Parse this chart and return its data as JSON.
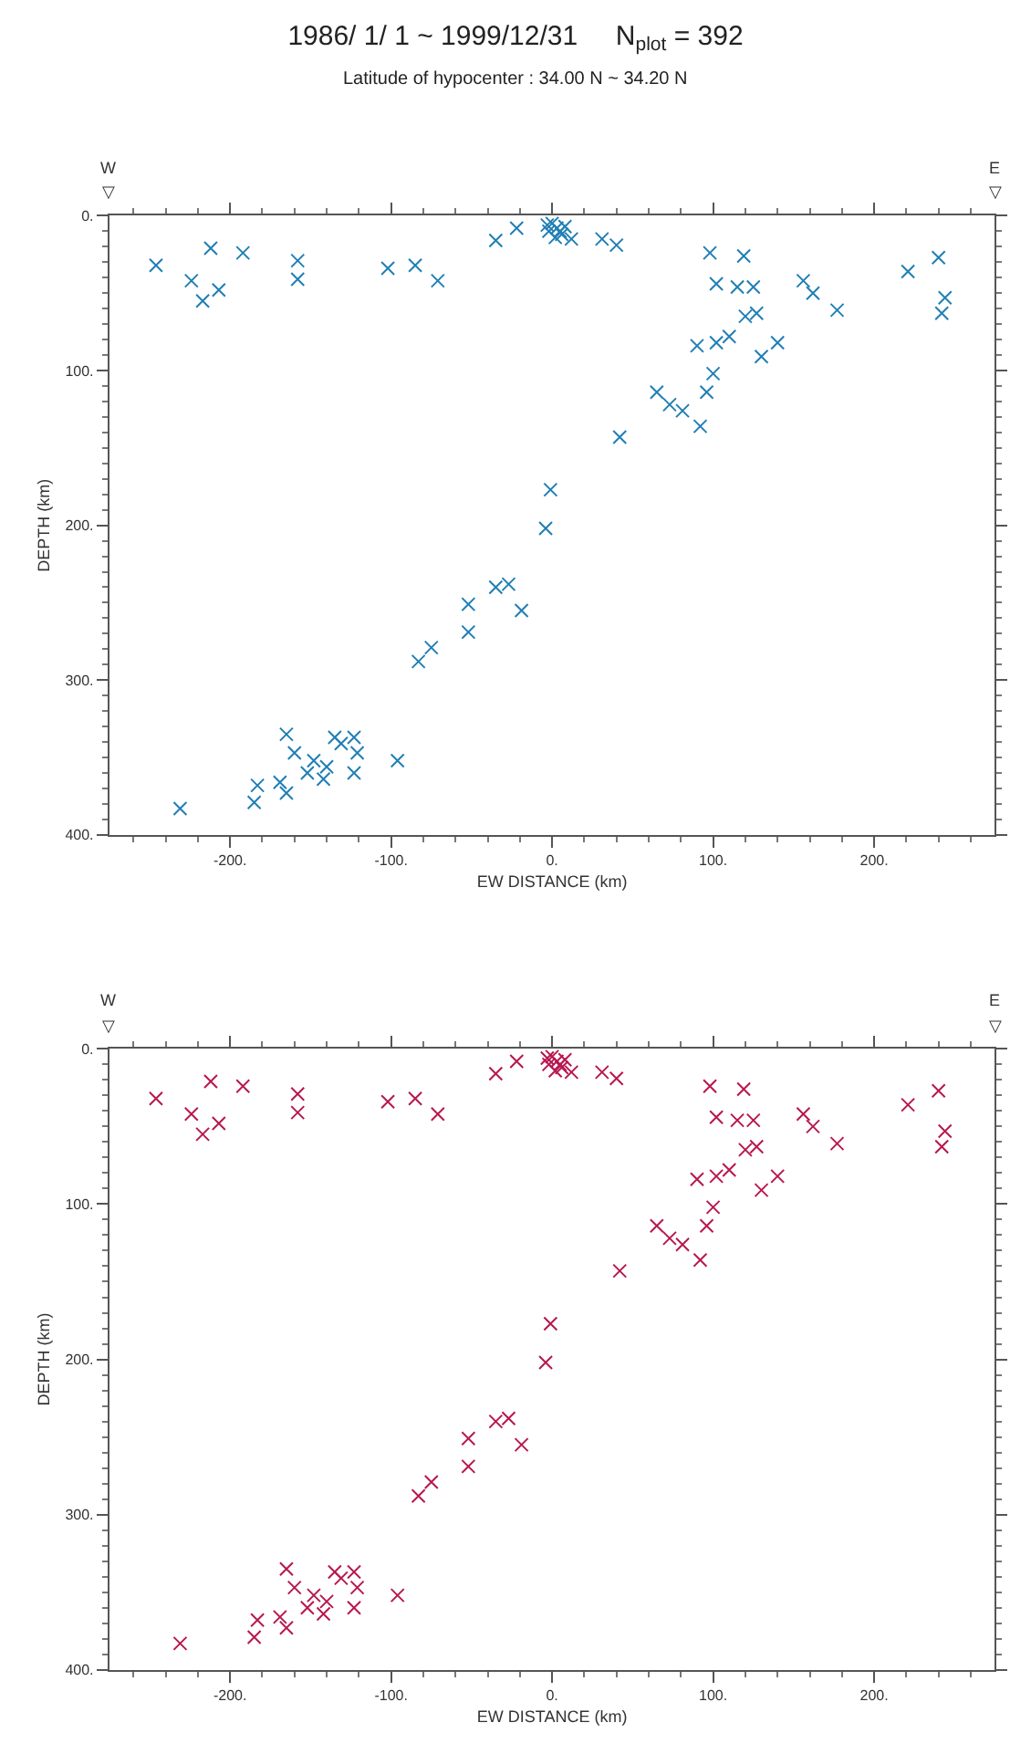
{
  "chart_data": [
    {
      "type": "scatter",
      "title": "1986/ 1/ 1 ~ 1999/12/31     N$_{plot}$ = 392",
      "subtitle": "Latitude of hypocenter : 34.00 N ~ 34.20 N",
      "xlabel": "EW DISTANCE (km)",
      "ylabel": "DEPTH (km)",
      "annotations": [
        "W",
        "▽",
        "E",
        "▽"
      ],
      "marker": "cross",
      "xlim": [
        -275,
        275
      ],
      "ylim": [
        400,
        0
      ],
      "xticks": [
        {
          "value": -200,
          "label": "-200."
        },
        {
          "value": -100,
          "label": "-100."
        },
        {
          "value": 0,
          "label": "0."
        },
        {
          "value": 100,
          "label": "100."
        },
        {
          "value": 200,
          "label": "200."
        }
      ],
      "yticks": [
        {
          "value": 0,
          "label": "0."
        },
        {
          "value": 100,
          "label": "100."
        },
        {
          "value": 200,
          "label": "200."
        },
        {
          "value": 300,
          "label": "300."
        },
        {
          "value": 400,
          "label": "400."
        }
      ],
      "series": [
        {
          "color": "#1f7fb4",
          "x": [
            -246,
            -212,
            -192,
            -158,
            -158,
            -224,
            -217,
            -207,
            -102,
            -85,
            -71,
            -35,
            -22,
            0,
            3,
            5,
            -3,
            6,
            2,
            8,
            -2,
            12,
            31,
            40,
            98,
            119,
            102,
            115,
            125,
            120,
            127,
            156,
            162,
            177,
            221,
            240,
            244,
            242,
            90,
            102,
            110,
            140,
            130,
            100,
            96,
            65,
            73,
            81,
            92,
            42,
            -1,
            -4,
            -35,
            -27,
            -52,
            -19,
            -52,
            -75,
            -83,
            -165,
            -135,
            -123,
            -131,
            -160,
            -121,
            -148,
            -140,
            -152,
            -96,
            -123,
            -169,
            -165,
            -183,
            -185,
            -142,
            -231
          ],
          "values": [
            32,
            21,
            24,
            29,
            41,
            42,
            55,
            48,
            34,
            32,
            42,
            16,
            8,
            5,
            8,
            10,
            6,
            12,
            14,
            7,
            10,
            15,
            15,
            19,
            24,
            26,
            44,
            46,
            46,
            65,
            63,
            42,
            50,
            61,
            36,
            27,
            53,
            63,
            84,
            82,
            78,
            82,
            91,
            102,
            114,
            114,
            122,
            126,
            136,
            143,
            177,
            202,
            240,
            238,
            251,
            255,
            269,
            279,
            288,
            335,
            337,
            337,
            341,
            347,
            347,
            352,
            356,
            360,
            352,
            360,
            366,
            373,
            368,
            379,
            364,
            383
          ]
        }
      ]
    },
    {
      "type": "scatter",
      "xlabel": "EW DISTANCE (km)",
      "ylabel": "DEPTH (km)",
      "annotations": [
        "W",
        "▽",
        "E",
        "▽"
      ],
      "marker": "cross",
      "xlim": [
        -275,
        275
      ],
      "ylim": [
        400,
        0
      ],
      "xticks": [
        {
          "value": -200,
          "label": "-200."
        },
        {
          "value": -100,
          "label": "-100."
        },
        {
          "value": 0,
          "label": "0."
        },
        {
          "value": 100,
          "label": "100."
        },
        {
          "value": 200,
          "label": "200."
        }
      ],
      "yticks": [
        {
          "value": 0,
          "label": "0."
        },
        {
          "value": 100,
          "label": "100."
        },
        {
          "value": 200,
          "label": "200."
        },
        {
          "value": 300,
          "label": "300."
        },
        {
          "value": 400,
          "label": "400."
        }
      ],
      "series": [
        {
          "color": "#b8174f",
          "x": [
            -246,
            -212,
            -192,
            -158,
            -158,
            -224,
            -217,
            -207,
            -102,
            -85,
            -71,
            -35,
            -22,
            0,
            3,
            5,
            -3,
            6,
            2,
            8,
            -2,
            12,
            31,
            40,
            98,
            119,
            102,
            115,
            125,
            120,
            127,
            156,
            162,
            177,
            221,
            240,
            244,
            242,
            90,
            102,
            110,
            140,
            130,
            100,
            96,
            65,
            73,
            81,
            92,
            42,
            -1,
            -4,
            -35,
            -27,
            -52,
            -19,
            -52,
            -75,
            -83,
            -165,
            -135,
            -123,
            -131,
            -160,
            -121,
            -148,
            -140,
            -152,
            -96,
            -123,
            -169,
            -165,
            -183,
            -185,
            -142,
            -231
          ],
          "values": [
            32,
            21,
            24,
            29,
            41,
            42,
            55,
            48,
            34,
            32,
            42,
            16,
            8,
            5,
            8,
            10,
            6,
            12,
            14,
            7,
            10,
            15,
            15,
            19,
            24,
            26,
            44,
            46,
            46,
            65,
            63,
            42,
            50,
            61,
            36,
            27,
            53,
            63,
            84,
            82,
            78,
            82,
            91,
            102,
            114,
            114,
            122,
            126,
            136,
            143,
            177,
            202,
            240,
            238,
            251,
            255,
            269,
            279,
            288,
            335,
            337,
            337,
            341,
            347,
            347,
            352,
            356,
            360,
            352,
            360,
            366,
            373,
            368,
            379,
            364,
            383
          ]
        }
      ]
    }
  ]
}
